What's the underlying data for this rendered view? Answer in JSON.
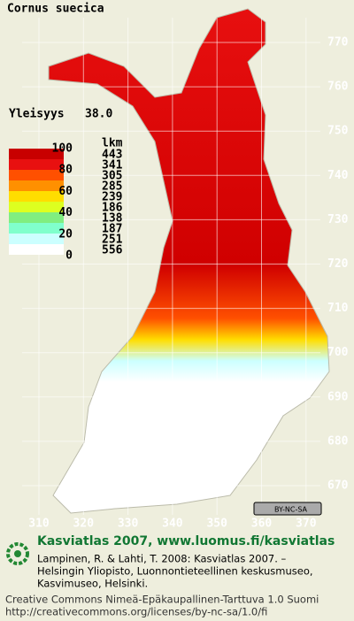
{
  "title": "Cornus suecica",
  "frequency": {
    "label": "Yleisyys",
    "value": "38.0"
  },
  "legend": {
    "scale": [
      100,
      80,
      60,
      40,
      20,
      0
    ],
    "count_header": "lkm",
    "counts": [
      443,
      341,
      305,
      285,
      239,
      186,
      138,
      187,
      251,
      556
    ],
    "colors": [
      "#c80000",
      "#e81010",
      "#ff5000",
      "#ff9000",
      "#ffdd00",
      "#ddff20",
      "#80ee80",
      "#80ffcc",
      "#ccffff",
      "#ffffff"
    ]
  },
  "map": {
    "yticks": [
      770,
      760,
      750,
      740,
      730,
      720,
      710,
      700,
      690,
      680,
      670
    ],
    "xticks": [
      310,
      320,
      330,
      340,
      350,
      360,
      370
    ],
    "license_badge": "BY-NC-SA"
  },
  "footer": {
    "heading": "Kasviatlas 2007, www.luomus.fi/kasviatlas",
    "citation": [
      "Lampinen, R. & Lahti, T. 2008: Kasviatlas 2007. –",
      "Helsingin Yliopisto, Luonnontieteellinen keskusmuseo,",
      "Kasvimuseo, Helsinki."
    ],
    "license": [
      "Creative Commons Nimeä-Epäkaupallinen-Tarttuva 1.0 Suomi",
      "http://creativecommons.org/licenses/by-nc-sa/1.0/fi"
    ]
  }
}
